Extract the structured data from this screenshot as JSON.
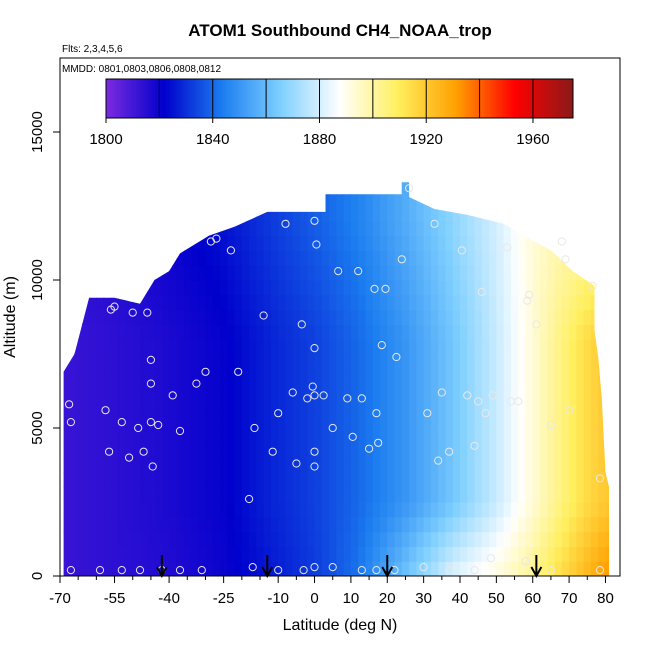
{
  "chart_data": {
    "type": "heatmap",
    "title": "ATOM1 Southbound CH4_NOAA_trop",
    "subtitle_flights": "Flts: 2,3,4,5,6",
    "subtitle_dates": "MMDD: 0801,0803,0806,0808,0812",
    "xlabel": "Latitude (deg N)",
    "ylabel": "Altitude (m)",
    "xlim": [
      -70,
      84
    ],
    "ylim": [
      0,
      17500
    ],
    "x_ticks": [
      -70,
      -55,
      -40,
      -25,
      -10,
      0,
      10,
      20,
      30,
      40,
      50,
      60,
      70,
      80
    ],
    "x_tick_labels": [
      "-70",
      "-55",
      "-40",
      "-25",
      "-10",
      "0",
      "10",
      "20",
      "30",
      "40",
      "50",
      "60",
      "70",
      "80"
    ],
    "x_minor_ticks": [
      -65,
      -60,
      -50,
      -45,
      -35,
      -30,
      -20,
      -15,
      -5,
      5,
      15,
      25,
      35,
      45,
      55,
      65,
      75
    ],
    "y_ticks": [
      0,
      5000,
      10000,
      15000
    ],
    "y_tick_labels": [
      "0",
      "5000",
      "10000",
      "15000"
    ],
    "colorbar": {
      "min": 1800,
      "max": 1975,
      "ticks": [
        1800,
        1840,
        1880,
        1920,
        1960
      ],
      "tick_labels": [
        "1800",
        "1840",
        "1880",
        "1920",
        "1960"
      ],
      "divisions": [
        1820,
        1840,
        1860,
        1880,
        1900,
        1920,
        1940,
        1960
      ],
      "colors": [
        "#7b2be0",
        "#0000cc",
        "#1c7ef0",
        "#7fd0ff",
        "#ffffff",
        "#ffef5e",
        "#ffa000",
        "#ff0000",
        "#8b1a1a"
      ]
    },
    "field": {
      "lat_nodes": [
        -68,
        -55,
        -40,
        -25,
        -12,
        0,
        12,
        25,
        38,
        50,
        60,
        68,
        75,
        80
      ],
      "lat_values": [
        1812,
        1814,
        1817,
        1821,
        1828,
        1833,
        1840,
        1850,
        1863,
        1878,
        1893,
        1905,
        1915,
        1920
      ],
      "lat_values_surface": [
        1812,
        1814,
        1816,
        1820,
        1826,
        1832,
        1842,
        1862,
        1882,
        1892,
        1902,
        1915,
        1925,
        1932
      ],
      "lat_values_upper": [
        1814,
        1816,
        1820,
        1825,
        1832,
        1838,
        1845,
        1856,
        1868,
        1880,
        1893,
        1898,
        1898,
        1898
      ]
    },
    "coverage_top": [
      {
        "lat": -69,
        "alt": 6900
      },
      {
        "lat": -66,
        "alt": 7500
      },
      {
        "lat": -62,
        "alt": 9400
      },
      {
        "lat": -55,
        "alt": 9400
      },
      {
        "lat": -48,
        "alt": 9200
      },
      {
        "lat": -44,
        "alt": 10000
      },
      {
        "lat": -40,
        "alt": 10300
      },
      {
        "lat": -37,
        "alt": 10900
      },
      {
        "lat": -29,
        "alt": 11500
      },
      {
        "lat": -22,
        "alt": 11800
      },
      {
        "lat": -13,
        "alt": 12300
      },
      {
        "lat": 3,
        "alt": 12300
      },
      {
        "lat": 3,
        "alt": 12900
      },
      {
        "lat": 24,
        "alt": 12900
      },
      {
        "lat": 24,
        "alt": 13300
      },
      {
        "lat": 26,
        "alt": 13300
      },
      {
        "lat": 26,
        "alt": 12800
      },
      {
        "lat": 33,
        "alt": 12400
      },
      {
        "lat": 42,
        "alt": 12200
      },
      {
        "lat": 52,
        "alt": 11900
      },
      {
        "lat": 59,
        "alt": 11400
      },
      {
        "lat": 65,
        "alt": 11000
      },
      {
        "lat": 71,
        "alt": 10300
      },
      {
        "lat": 77,
        "alt": 9800
      },
      {
        "lat": 77,
        "alt": 8300
      },
      {
        "lat": 78,
        "alt": 7400
      },
      {
        "lat": 79,
        "alt": 6000
      },
      {
        "lat": 80,
        "alt": 3500
      },
      {
        "lat": 81,
        "alt": 3000
      },
      {
        "lat": 81,
        "alt": 0
      }
    ],
    "coverage_bottom": [
      {
        "lat": 81,
        "alt": 0
      },
      {
        "lat": -69,
        "alt": 0
      }
    ],
    "sample_points": [
      {
        "lat": -67.5,
        "alt": 5800
      },
      {
        "lat": -67,
        "alt": 5200
      },
      {
        "lat": -57.5,
        "alt": 5600
      },
      {
        "lat": -56.5,
        "alt": 4200
      },
      {
        "lat": -56,
        "alt": 9000
      },
      {
        "lat": -55,
        "alt": 9100
      },
      {
        "lat": -53,
        "alt": 5200
      },
      {
        "lat": -51,
        "alt": 4000
      },
      {
        "lat": -50,
        "alt": 8900
      },
      {
        "lat": -48.5,
        "alt": 5000
      },
      {
        "lat": -47,
        "alt": 4200
      },
      {
        "lat": -46,
        "alt": 8900
      },
      {
        "lat": -45,
        "alt": 7300
      },
      {
        "lat": -45,
        "alt": 6500
      },
      {
        "lat": -45,
        "alt": 5200
      },
      {
        "lat": -44.5,
        "alt": 3700
      },
      {
        "lat": -43,
        "alt": 5100
      },
      {
        "lat": -39,
        "alt": 6100
      },
      {
        "lat": -37,
        "alt": 4900
      },
      {
        "lat": -32.5,
        "alt": 6500
      },
      {
        "lat": -30,
        "alt": 6900
      },
      {
        "lat": -28.5,
        "alt": 11300
      },
      {
        "lat": -27,
        "alt": 11400
      },
      {
        "lat": -23,
        "alt": 11000
      },
      {
        "lat": -21,
        "alt": 6900
      },
      {
        "lat": -18,
        "alt": 2600
      },
      {
        "lat": -16.5,
        "alt": 5000
      },
      {
        "lat": -14,
        "alt": 8800
      },
      {
        "lat": -11.5,
        "alt": 4200
      },
      {
        "lat": -10,
        "alt": 5500
      },
      {
        "lat": -8,
        "alt": 11900
      },
      {
        "lat": -6,
        "alt": 6200
      },
      {
        "lat": -5,
        "alt": 3800
      },
      {
        "lat": -3.5,
        "alt": 8500
      },
      {
        "lat": -2,
        "alt": 6000
      },
      {
        "lat": 0,
        "alt": 12000
      },
      {
        "lat": -0.5,
        "alt": 6400
      },
      {
        "lat": 0,
        "alt": 6100
      },
      {
        "lat": 0,
        "alt": 4200
      },
      {
        "lat": 0,
        "alt": 3700
      },
      {
        "lat": 0,
        "alt": 7700
      },
      {
        "lat": 0.5,
        "alt": 11200
      },
      {
        "lat": 2.5,
        "alt": 6100
      },
      {
        "lat": 5,
        "alt": 5000
      },
      {
        "lat": 6.5,
        "alt": 10300
      },
      {
        "lat": 9,
        "alt": 6000
      },
      {
        "lat": 10.5,
        "alt": 4700
      },
      {
        "lat": 12,
        "alt": 10300
      },
      {
        "lat": 13,
        "alt": 6000
      },
      {
        "lat": 15,
        "alt": 4300
      },
      {
        "lat": 16.5,
        "alt": 9700
      },
      {
        "lat": 17,
        "alt": 5500
      },
      {
        "lat": 17.5,
        "alt": 4500
      },
      {
        "lat": 18.5,
        "alt": 7800
      },
      {
        "lat": 19.5,
        "alt": 9700
      },
      {
        "lat": 22.5,
        "alt": 7400
      },
      {
        "lat": 24,
        "alt": 10700
      },
      {
        "lat": 26,
        "alt": 13100
      },
      {
        "lat": 31,
        "alt": 5500
      },
      {
        "lat": 33,
        "alt": 11900
      },
      {
        "lat": 34,
        "alt": 3900
      },
      {
        "lat": 35,
        "alt": 6200
      },
      {
        "lat": 37,
        "alt": 4200
      },
      {
        "lat": 40.5,
        "alt": 11000
      },
      {
        "lat": 42,
        "alt": 6100
      },
      {
        "lat": 44,
        "alt": 4400
      },
      {
        "lat": 45,
        "alt": 5900
      },
      {
        "lat": 46,
        "alt": 9600
      },
      {
        "lat": 47,
        "alt": 5500
      },
      {
        "lat": 49,
        "alt": 6100
      },
      {
        "lat": 53,
        "alt": 11100
      },
      {
        "lat": 54,
        "alt": 5900
      },
      {
        "lat": 56,
        "alt": 5900
      },
      {
        "lat": 58.5,
        "alt": 9300
      },
      {
        "lat": 59,
        "alt": 9500
      },
      {
        "lat": 61,
        "alt": 8500
      },
      {
        "lat": 65,
        "alt": 5100
      },
      {
        "lat": 68,
        "alt": 11300
      },
      {
        "lat": 69,
        "alt": 10700
      },
      {
        "lat": 70,
        "alt": 5600
      },
      {
        "lat": 76.5,
        "alt": 9800
      },
      {
        "lat": 78.5,
        "alt": 3300
      },
      {
        "lat": -67,
        "alt": 200
      },
      {
        "lat": -59,
        "alt": 200
      },
      {
        "lat": -53,
        "alt": 200
      },
      {
        "lat": -48,
        "alt": 200
      },
      {
        "lat": -42,
        "alt": 200
      },
      {
        "lat": -37,
        "alt": 200
      },
      {
        "lat": -31,
        "alt": 200
      },
      {
        "lat": -17,
        "alt": 300
      },
      {
        "lat": -10,
        "alt": 200
      },
      {
        "lat": -3,
        "alt": 200
      },
      {
        "lat": 0,
        "alt": 300
      },
      {
        "lat": 5,
        "alt": 300
      },
      {
        "lat": 13,
        "alt": 200
      },
      {
        "lat": 17,
        "alt": 200
      },
      {
        "lat": 22,
        "alt": 200
      },
      {
        "lat": 30,
        "alt": 300
      },
      {
        "lat": 37,
        "alt": 200
      },
      {
        "lat": 44,
        "alt": 200
      },
      {
        "lat": 48.5,
        "alt": 600
      },
      {
        "lat": 58,
        "alt": 500
      },
      {
        "lat": 65,
        "alt": 200
      },
      {
        "lat": 78.5,
        "alt": 200
      }
    ],
    "arrows_lat": [
      -42,
      -13,
      20,
      61
    ]
  }
}
